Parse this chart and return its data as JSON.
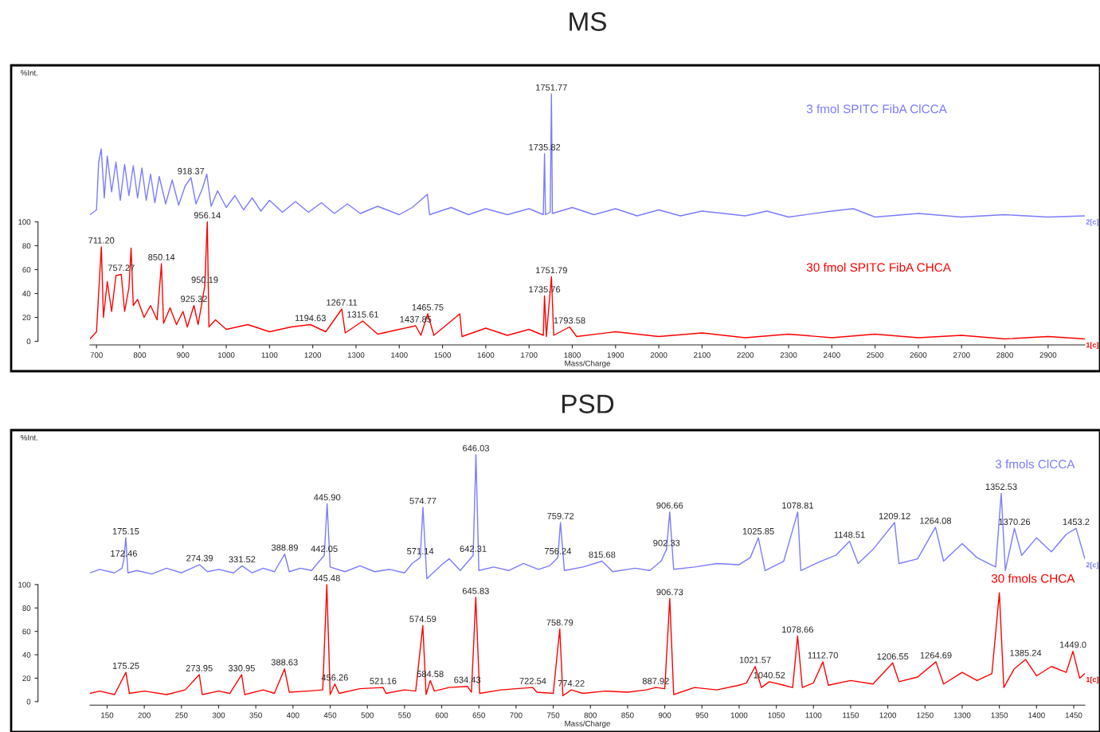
{
  "chart_data": [
    {
      "type": "line",
      "title": "MS",
      "xlabel": "Mass/Charge",
      "ylabel": "%Int.",
      "xlim": [
        685,
        2985
      ],
      "ylim": [
        -25,
        231
      ],
      "xticks": [
        700,
        800,
        900,
        1000,
        1100,
        1200,
        1300,
        1400,
        1500,
        1600,
        1700,
        1800,
        1900,
        2000,
        2100,
        2200,
        2300,
        2400,
        2500,
        2600,
        2700,
        2800,
        2900
      ],
      "yticks": [
        0,
        20,
        40,
        60,
        80,
        100
      ],
      "series": [
        {
          "name": "3 fmol SPITC FibA ClCCA",
          "color": "#7b7bff",
          "x": [
            685,
            700,
            705,
            711,
            718,
            725,
            735,
            745,
            755,
            765,
            775,
            785,
            795,
            805,
            815,
            825,
            835,
            845,
            860,
            875,
            890,
            905,
            918.37,
            930,
            945,
            955,
            965,
            980,
            1000,
            1020,
            1040,
            1060,
            1080,
            1100,
            1130,
            1160,
            1190,
            1220,
            1250,
            1280,
            1310,
            1350,
            1400,
            1430,
            1465,
            1470,
            1520,
            1560,
            1600,
            1650,
            1700,
            1733,
            1735.82,
            1738,
            1749,
            1751.77,
            1754,
            1800,
            1850,
            1900,
            1950,
            2000,
            2050,
            2100,
            2200,
            2250,
            2300,
            2400,
            2450,
            2500,
            2600,
            2700,
            2800,
            2900,
            2985
          ],
          "values": [
            106,
            110,
            150,
            161,
            120,
            155,
            125,
            150,
            118,
            148,
            122,
            147,
            120,
            145,
            118,
            140,
            116,
            138,
            115,
            135,
            114,
            130,
            137,
            115,
            128,
            140,
            113,
            126,
            112,
            122,
            110,
            120,
            109,
            118,
            108,
            117,
            108,
            116,
            107,
            115,
            107,
            113,
            106,
            112,
            123,
            106,
            112,
            106,
            111,
            106,
            111,
            106,
            157,
            106,
            108,
            207,
            107,
            112,
            106,
            111,
            105,
            110,
            105,
            109,
            105,
            109,
            104,
            109,
            111,
            104,
            107,
            104,
            106,
            104,
            105
          ]
        },
        {
          "name": "30 fmol SPITC FibA CHCA",
          "color": "#ff0000",
          "x": [
            685,
            700,
            705,
            711.2,
            716,
            725,
            735,
            745,
            757.27,
            765,
            775,
            780,
            785,
            795,
            810,
            825,
            840,
            850.14,
            855,
            870,
            885,
            900,
            910,
            925.32,
            935,
            950.19,
            956.14,
            960,
            975,
            1000,
            1050,
            1100,
            1150,
            1194.63,
            1230,
            1267.11,
            1275,
            1315.61,
            1350,
            1400,
            1437.85,
            1450,
            1465.75,
            1480,
            1540,
            1545,
            1600,
            1650,
            1700,
            1733,
            1735.76,
            1740,
            1751.79,
            1757,
            1793.58,
            1810,
            1900,
            2000,
            2100,
            2200,
            2300,
            2400,
            2500,
            2600,
            2700,
            2800,
            2900,
            2985
          ],
          "values": [
            2,
            8,
            40,
            79,
            20,
            50,
            25,
            55,
            56,
            25,
            45,
            78,
            30,
            35,
            20,
            30,
            18,
            65,
            15,
            28,
            14,
            25,
            12,
            30,
            14,
            46,
            100,
            12,
            18,
            10,
            14,
            8,
            12,
            14,
            8,
            27,
            7,
            17,
            6,
            10,
            13,
            5,
            23,
            5,
            23,
            4,
            11,
            5,
            10,
            5,
            38,
            4,
            54,
            5,
            12,
            4,
            8,
            4,
            7,
            3,
            6,
            3,
            6,
            3,
            5,
            2,
            4,
            2
          ]
        }
      ],
      "annotations": [
        {
          "text": "1751.77",
          "x": 1751.77,
          "y": 207
        },
        {
          "text": "1735.82",
          "x": 1735.82,
          "y": 157
        },
        {
          "text": "918.37",
          "x": 918.37,
          "y": 137
        },
        {
          "text": "956.14",
          "x": 956.14,
          "y": 100
        },
        {
          "text": "711.20",
          "x": 711.2,
          "y": 79
        },
        {
          "text": "850.14",
          "x": 850.14,
          "y": 65
        },
        {
          "text": "757.27",
          "x": 757.27,
          "y": 56
        },
        {
          "text": "950.19",
          "x": 950.19,
          "y": 46
        },
        {
          "text": "925.32",
          "x": 925.32,
          "y": 30
        },
        {
          "text": "1267.11",
          "x": 1267.11,
          "y": 27
        },
        {
          "text": "1315.61",
          "x": 1315.61,
          "y": 17
        },
        {
          "text": "1194.63",
          "x": 1194.63,
          "y": 14
        },
        {
          "text": "1465.75",
          "x": 1465.75,
          "y": 23
        },
        {
          "text": "1437.85",
          "x": 1437.85,
          "y": 13
        },
        {
          "text": "1751.79",
          "x": 1751.79,
          "y": 54
        },
        {
          "text": "1735.76",
          "x": 1735.76,
          "y": 38
        },
        {
          "text": "1793.58",
          "x": 1793.58,
          "y": 12
        },
        "2[c]",
        "1[c]"
      ]
    },
    {
      "type": "line",
      "title": "PSD",
      "xlabel": "Mass/Charge",
      "ylabel": "%Int.",
      "xlim": [
        127,
        1465
      ],
      "ylim": [
        -26,
        232
      ],
      "xticks": [
        150,
        200,
        250,
        300,
        350,
        400,
        450,
        500,
        550,
        600,
        650,
        700,
        750,
        800,
        850,
        900,
        950,
        1000,
        1050,
        1100,
        1150,
        1200,
        1250,
        1300,
        1350,
        1400,
        1450
      ],
      "yticks": [
        0,
        20,
        40,
        60,
        80,
        100
      ],
      "series": [
        {
          "name": "3 fmols ClCCA",
          "color": "#7b7bff",
          "x": [
            127,
            140,
            160,
            170,
            172.46,
            175.15,
            178,
            190,
            210,
            230,
            250,
            274.39,
            285,
            300,
            320,
            331.52,
            345,
            360,
            375,
            388.89,
            395,
            410,
            425,
            442.05,
            445.9,
            450,
            470,
            490,
            510,
            530,
            550,
            560,
            571.14,
            574.77,
            580,
            600,
            610,
            625,
            642.31,
            646.03,
            650,
            670,
            690,
            710,
            730,
            745,
            756.24,
            759.72,
            765,
            790,
            815.68,
            830,
            860,
            880,
            895,
            902.33,
            906.66,
            912,
            940,
            970,
            1000,
            1015,
            1025.85,
            1035,
            1060,
            1078.81,
            1083,
            1110,
            1130,
            1148.51,
            1160,
            1180,
            1209.12,
            1215,
            1240,
            1264.08,
            1275,
            1300,
            1320,
            1345,
            1352.53,
            1358,
            1370.26,
            1380,
            1400,
            1420,
            1440,
            1453.2,
            1465
          ],
          "values": [
            110,
            113,
            110,
            114,
            121,
            140,
            110,
            112,
            109,
            114,
            110,
            117,
            111,
            113,
            110,
            116,
            110,
            114,
            111,
            126,
            111,
            114,
            112,
            125,
            169,
            115,
            111,
            116,
            111,
            113,
            110,
            118,
            123,
            166,
            105,
            117,
            122,
            112,
            125,
            211,
            112,
            115,
            112,
            118,
            113,
            116,
            123,
            153,
            112,
            115,
            120,
            111,
            114,
            112,
            120,
            130,
            162,
            113,
            115,
            118,
            117,
            123,
            140,
            112,
            120,
            162,
            112,
            120,
            125,
            137,
            118,
            130,
            153,
            118,
            122,
            149,
            120,
            135,
            123,
            115,
            178,
            112,
            148,
            125,
            140,
            128,
            143,
            148,
            122
          ]
        },
        {
          "name": "30 fmols CHCA",
          "color": "#ff0000",
          "x": [
            127,
            140,
            160,
            175.25,
            180,
            200,
            230,
            255,
            273.95,
            278,
            300,
            315,
            330.95,
            335,
            360,
            375,
            388.63,
            395,
            420,
            440,
            445.48,
            450,
            456.26,
            462,
            490,
            521.16,
            525,
            550,
            565,
            574.59,
            579,
            584.58,
            590,
            610,
            634.43,
            640,
            645.83,
            651,
            680,
            700,
            722.54,
            728,
            750,
            758.79,
            763,
            774.22,
            790,
            820,
            850,
            875,
            887.92,
            900,
            906.73,
            912,
            940,
            970,
            1000,
            1010,
            1021.57,
            1030,
            1040.52,
            1060,
            1072,
            1078.66,
            1085,
            1100,
            1112.7,
            1120,
            1150,
            1180,
            1206.55,
            1215,
            1240,
            1264.69,
            1275,
            1300,
            1320,
            1340,
            1350,
            1356,
            1370,
            1385.24,
            1400,
            1420,
            1440,
            1449,
            1458,
            1465
          ],
          "values": [
            7,
            9,
            6,
            25,
            7,
            9,
            6,
            10,
            23,
            6,
            9,
            7,
            23,
            6,
            10,
            7,
            28,
            8,
            9,
            10,
            100,
            6,
            15,
            7,
            11,
            12,
            7,
            10,
            9,
            65,
            6,
            18,
            9,
            12,
            13,
            8,
            89,
            7,
            10,
            11,
            12,
            8,
            7,
            62,
            5,
            10,
            7,
            9,
            8,
            10,
            12,
            11,
            88,
            6,
            12,
            10,
            14,
            16,
            30,
            12,
            17,
            14,
            12,
            56,
            12,
            16,
            34,
            14,
            18,
            15,
            33,
            17,
            21,
            34,
            15,
            25,
            18,
            24,
            93,
            12,
            28,
            36,
            22,
            30,
            25,
            43,
            20,
            24
          ]
        }
      ],
      "annotations": [
        {
          "text": "646.03",
          "x": 646.03,
          "y": 211
        },
        {
          "text": "445.90",
          "x": 445.9,
          "y": 169
        },
        {
          "text": "574.77",
          "x": 574.77,
          "y": 166
        },
        {
          "text": "175.15",
          "x": 175.15,
          "y": 140
        },
        {
          "text": "172.46",
          "x": 172.46,
          "y": 121
        },
        {
          "text": "274.39",
          "x": 274.39,
          "y": 117
        },
        {
          "text": "331.52",
          "x": 331.52,
          "y": 116
        },
        {
          "text": "388.89",
          "x": 388.89,
          "y": 126
        },
        {
          "text": "442.05",
          "x": 442.05,
          "y": 125
        },
        {
          "text": "571.14",
          "x": 571.14,
          "y": 123
        },
        {
          "text": "642.31",
          "x": 642.31,
          "y": 125
        },
        {
          "text": "759.72",
          "x": 759.72,
          "y": 153
        },
        {
          "text": "756.24",
          "x": 756.24,
          "y": 123
        },
        {
          "text": "815.68",
          "x": 815.68,
          "y": 120
        },
        {
          "text": "902.33",
          "x": 902.33,
          "y": 130
        },
        {
          "text": "906.66",
          "x": 906.66,
          "y": 162
        },
        {
          "text": "1025.85",
          "x": 1025.85,
          "y": 140
        },
        {
          "text": "1078.81",
          "x": 1078.81,
          "y": 162
        },
        {
          "text": "1148.51",
          "x": 1148.51,
          "y": 137
        },
        {
          "text": "1209.12",
          "x": 1209.12,
          "y": 153
        },
        {
          "text": "1264.08",
          "x": 1264.08,
          "y": 149
        },
        {
          "text": "1352.53",
          "x": 1352.53,
          "y": 178
        },
        {
          "text": "1370.26",
          "x": 1370.26,
          "y": 148
        },
        {
          "text": "1453.2",
          "x": 1453.2,
          "y": 148
        },
        {
          "text": "445.48",
          "x": 445.48,
          "y": 100
        },
        {
          "text": "645.83",
          "x": 645.83,
          "y": 89
        },
        {
          "text": "574.59",
          "x": 574.59,
          "y": 65
        },
        {
          "text": "175.25",
          "x": 175.25,
          "y": 25
        },
        {
          "text": "273.95",
          "x": 273.95,
          "y": 23
        },
        {
          "text": "330.95",
          "x": 330.95,
          "y": 23
        },
        {
          "text": "388.63",
          "x": 388.63,
          "y": 28
        },
        {
          "text": "456.26",
          "x": 456.26,
          "y": 15
        },
        {
          "text": "521.16",
          "x": 521.16,
          "y": 12
        },
        {
          "text": "584.58",
          "x": 584.58,
          "y": 18
        },
        {
          "text": "634.43",
          "x": 634.43,
          "y": 13
        },
        {
          "text": "722.54",
          "x": 722.54,
          "y": 12
        },
        {
          "text": "758.79",
          "x": 758.79,
          "y": 62
        },
        {
          "text": "774.22",
          "x": 774.22,
          "y": 10
        },
        {
          "text": "887.92",
          "x": 887.92,
          "y": 12
        },
        {
          "text": "906.73",
          "x": 906.73,
          "y": 88
        },
        {
          "text": "1021.57",
          "x": 1021.57,
          "y": 30
        },
        {
          "text": "1040.52",
          "x": 1040.52,
          "y": 17
        },
        {
          "text": "1078.66",
          "x": 1078.66,
          "y": 56
        },
        {
          "text": "1112.70",
          "x": 1112.7,
          "y": 34
        },
        {
          "text": "1206.55",
          "x": 1206.55,
          "y": 33
        },
        {
          "text": "1264.69",
          "x": 1264.69,
          "y": 34
        },
        {
          "text": "1385.24",
          "x": 1385.24,
          "y": 36
        },
        {
          "text": "1449.0",
          "x": 1449,
          "y": 43
        },
        "2[c]",
        "1[c]"
      ]
    }
  ]
}
